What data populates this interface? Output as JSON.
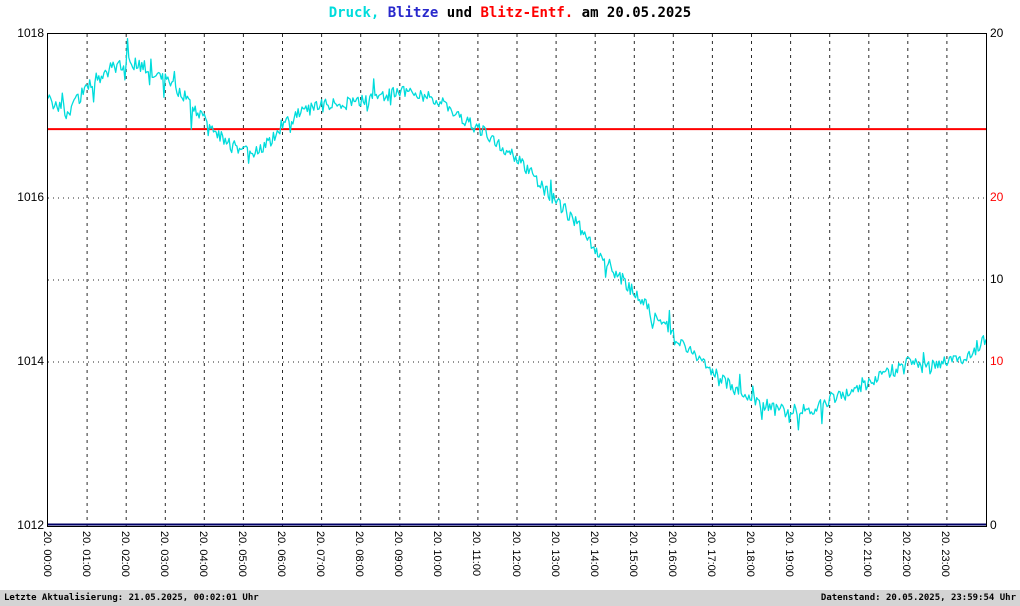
{
  "title": {
    "segments": [
      {
        "text": "Druck,",
        "color": "#00dcdc"
      },
      {
        "text": " Blitze",
        "color": "#2828cc"
      },
      {
        "text": " und ",
        "color": "#000000"
      },
      {
        "text": "Blitz-Entf.",
        "color": "#ff0000"
      },
      {
        "text": " am 20.05.2025",
        "color": "#000000"
      }
    ]
  },
  "footer": {
    "left": "Letzte Aktualisierung: 21.05.2025, 00:02:01 Uhr",
    "right": "Datenstand: 20.05.2025, 23:59:54 Uhr"
  },
  "chart_data": {
    "type": "line",
    "title": "Druck, Blitze und Blitz-Entf. am 20.05.2025",
    "grid": "hourly dashed vertical, dotted horizontal",
    "x_axis": {
      "range_hours": [
        0,
        24
      ],
      "labels": [
        "20. 00:00",
        "20. 01:00",
        "20. 02:00",
        "20. 03:00",
        "20. 04:00",
        "20. 05:00",
        "20. 06:00",
        "20. 07:00",
        "20. 08:00",
        "20. 09:00",
        "20. 10:00",
        "20. 11:00",
        "20. 12:00",
        "20. 13:00",
        "20. 14:00",
        "20. 15:00",
        "20. 16:00",
        "20. 17:00",
        "20. 18:00",
        "20. 19:00",
        "20. 20:00",
        "20. 21:00",
        "20. 22:00",
        "20. 23:00"
      ]
    },
    "left_axis": {
      "range": [
        1012,
        1018
      ],
      "ticks": [
        1018,
        1016,
        1014,
        1012
      ],
      "grid_ticks": [
        1016,
        1014
      ],
      "color": "#000000"
    },
    "right_axis": {
      "range": [
        0,
        20
      ],
      "ticks": [
        20,
        10,
        0
      ],
      "grid_ticks": [
        10
      ],
      "color": "#000000"
    },
    "right_axis2": {
      "range": [
        0,
        30
      ],
      "ticks": [
        20,
        10
      ],
      "color": "#ff0000"
    },
    "series": [
      {
        "name": "Druck",
        "color": "#00dcdc",
        "axis": "left",
        "noise_band": 0.16,
        "x_hours": [
          0,
          0.5,
          1,
          1.5,
          2,
          2.5,
          3,
          3.5,
          4,
          4.5,
          5,
          5.5,
          6,
          6.5,
          7,
          7.5,
          8,
          8.5,
          9,
          9.5,
          10,
          10.5,
          11,
          11.5,
          12,
          12.5,
          13,
          13.5,
          14,
          14.5,
          15,
          15.5,
          16,
          16.5,
          17,
          17.5,
          18,
          18.5,
          19,
          19.5,
          20,
          20.5,
          21,
          21.5,
          22,
          22.5,
          23,
          23.5,
          24
        ],
        "values": [
          1017.2,
          1017.05,
          1017.35,
          1017.55,
          1017.65,
          1017.6,
          1017.45,
          1017.25,
          1016.95,
          1016.72,
          1016.55,
          1016.6,
          1016.88,
          1017.05,
          1017.12,
          1017.15,
          1017.18,
          1017.22,
          1017.3,
          1017.28,
          1017.18,
          1017.0,
          1016.85,
          1016.68,
          1016.5,
          1016.22,
          1015.95,
          1015.7,
          1015.4,
          1015.1,
          1014.85,
          1014.6,
          1014.35,
          1014.1,
          1013.9,
          1013.7,
          1013.55,
          1013.45,
          1013.38,
          1013.42,
          1013.55,
          1013.62,
          1013.75,
          1013.88,
          1014.0,
          1013.92,
          1014.0,
          1014.05,
          1014.3
        ]
      },
      {
        "name": "Blitze",
        "color": "#000066",
        "axis": "right",
        "constant_value": 0
      },
      {
        "name": "Blitz-Entf.",
        "color": "#ff0000",
        "axis": "right2",
        "constant_value": 24.2
      }
    ]
  }
}
